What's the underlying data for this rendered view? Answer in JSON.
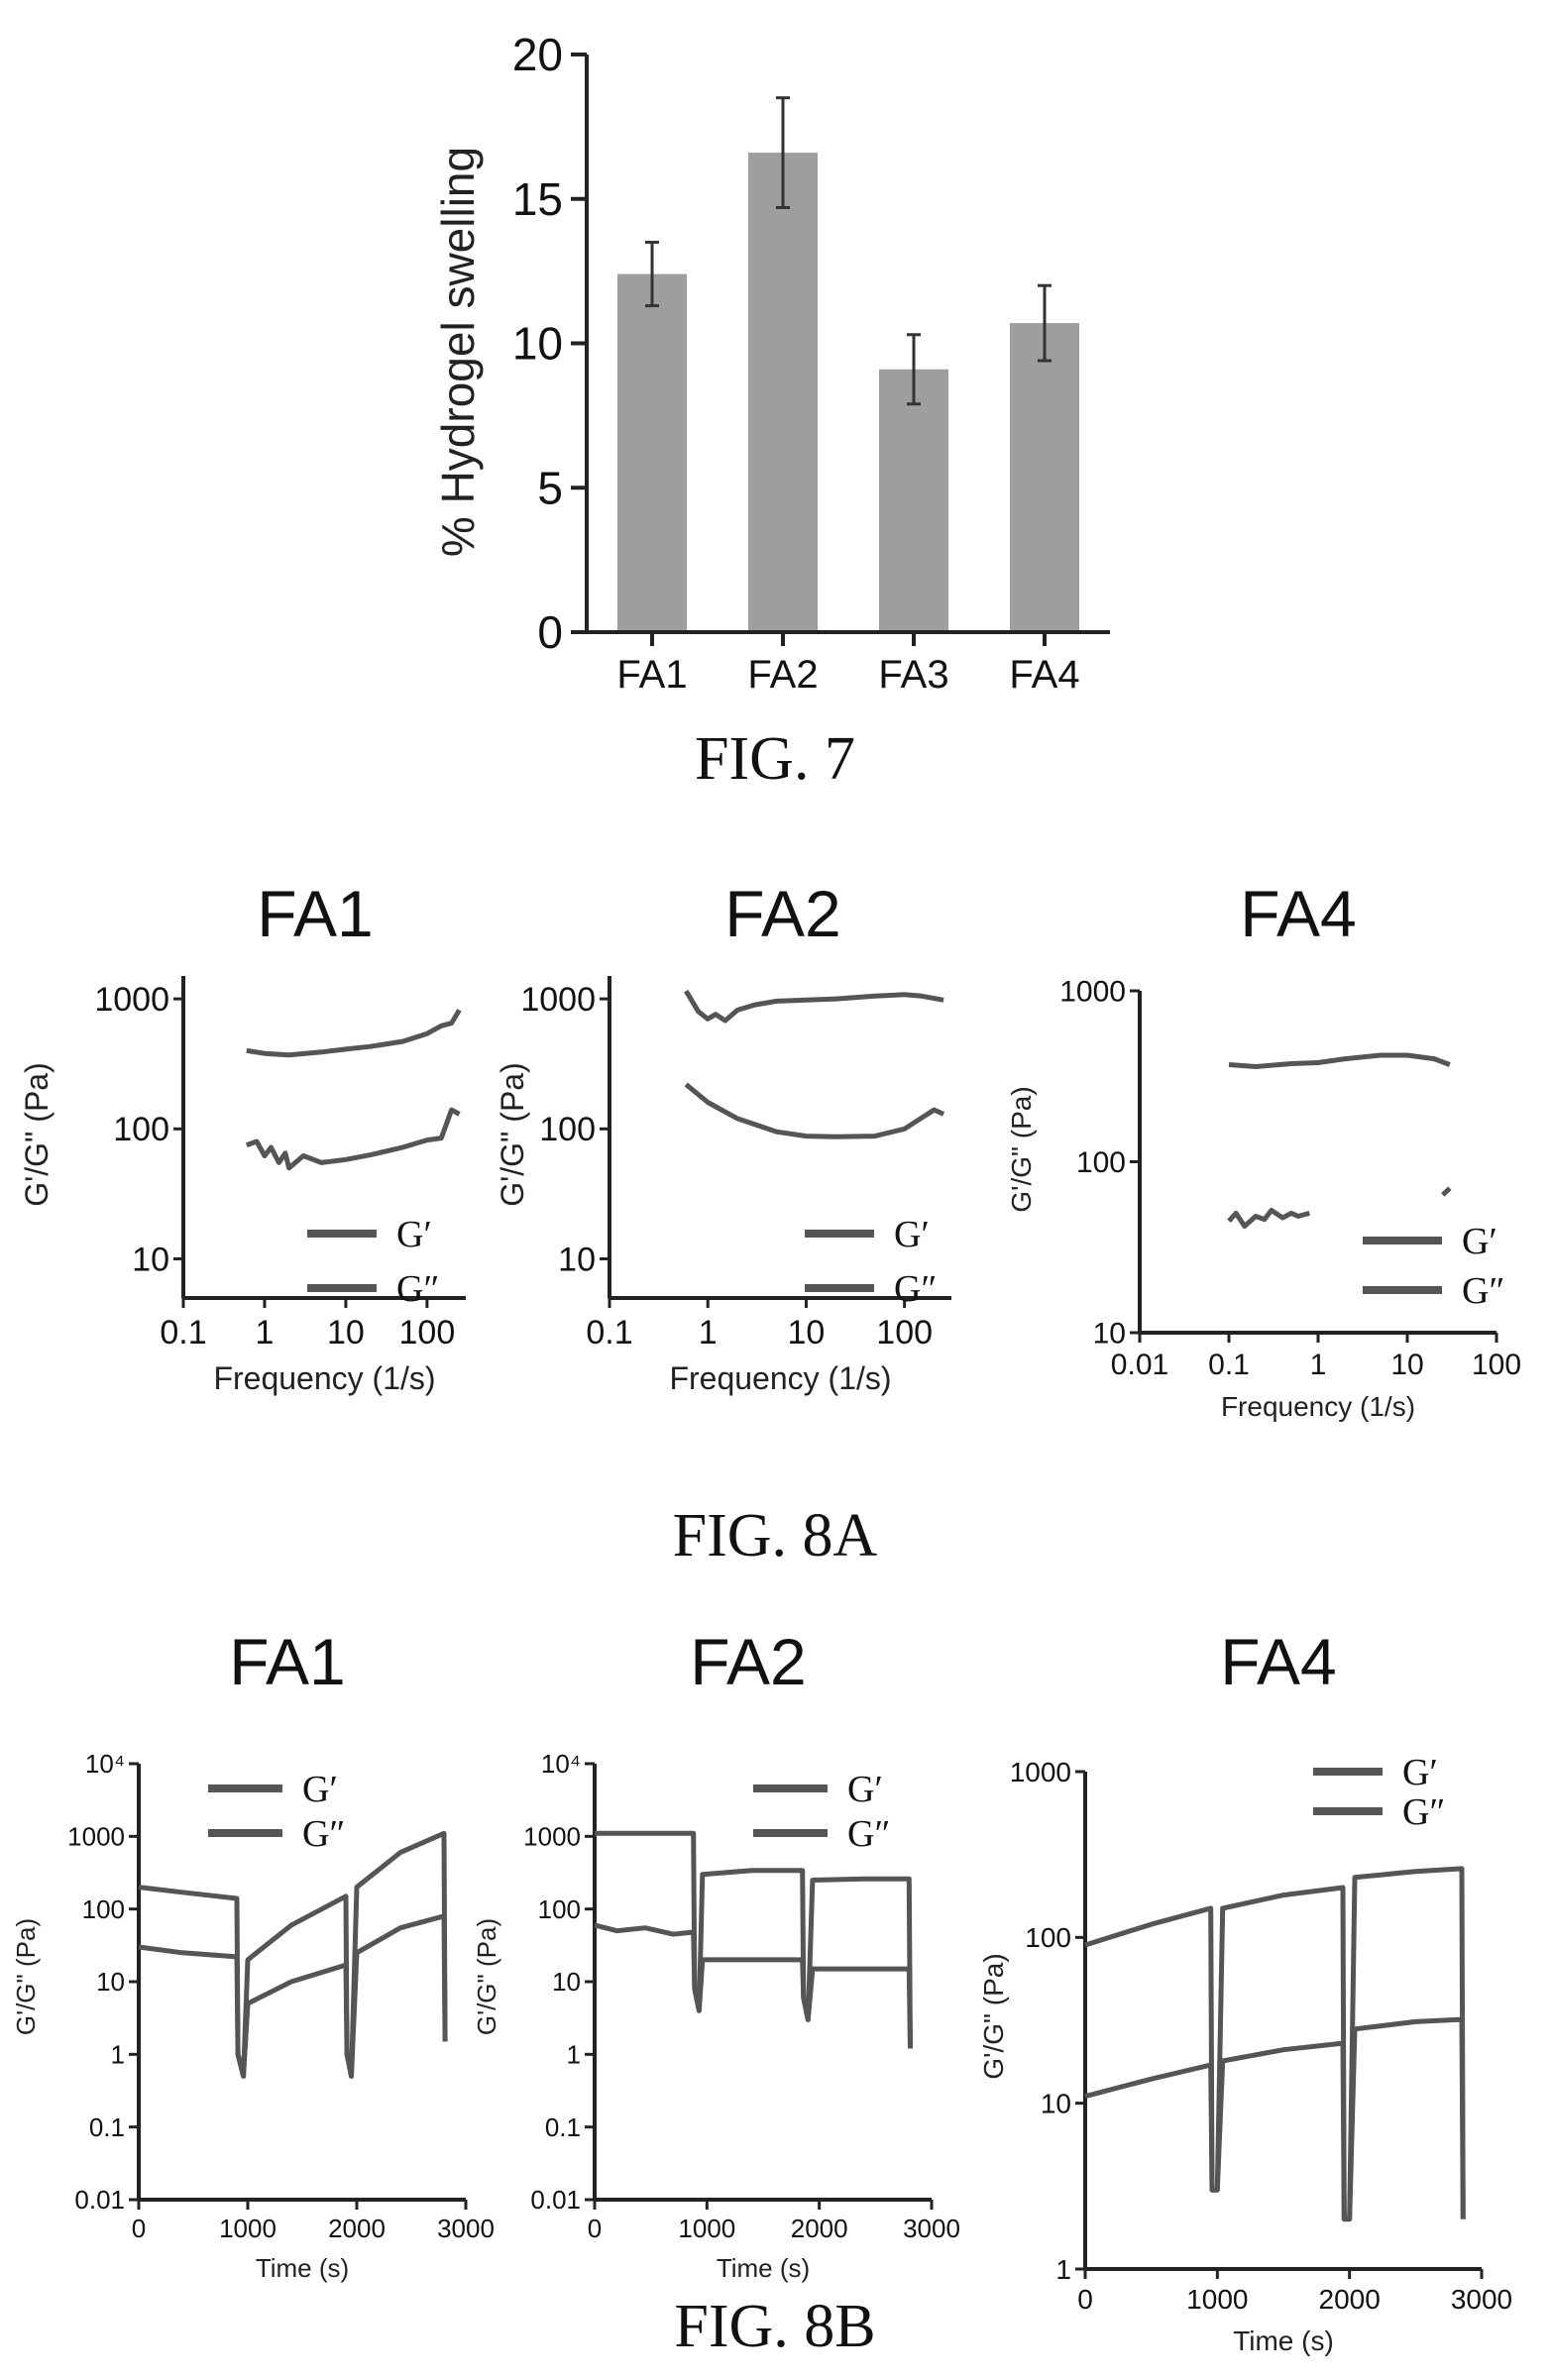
{
  "chart_data": [
    {
      "id": "fig7",
      "type": "bar",
      "caption": "FIG. 7",
      "ylabel": "% Hydrogel swelling",
      "categories": [
        "FA1",
        "FA2",
        "FA3",
        "FA4"
      ],
      "values": [
        12.4,
        16.6,
        9.1,
        10.7
      ],
      "errors": [
        1.1,
        1.9,
        1.2,
        1.3
      ],
      "ylim": [
        0,
        20
      ],
      "yticks": [
        0,
        5,
        10,
        15,
        20
      ],
      "bar_color": "#9e9e9e"
    },
    {
      "id": "fig8a_fa1",
      "type": "line",
      "title": "FA1",
      "xlabel": "Frequency (1/s)",
      "ylabel": "G'/G\" (Pa)",
      "xscale": "log",
      "yscale": "log",
      "xlim": [
        0.1,
        300
      ],
      "ylim": [
        5,
        1500
      ],
      "xticks": [
        0.1,
        1,
        10,
        100
      ],
      "xtick_labels": [
        "0.1",
        "1",
        "10",
        "100"
      ],
      "yticks": [
        10,
        100,
        1000
      ],
      "ytick_labels": [
        "10",
        "100",
        "1000"
      ],
      "legend": [
        "G′",
        "G″"
      ],
      "series": [
        {
          "name": "G′",
          "x": [
            0.6,
            1,
            2,
            5,
            10,
            20,
            50,
            100,
            150,
            200,
            250
          ],
          "y": [
            400,
            380,
            370,
            390,
            410,
            430,
            470,
            540,
            620,
            650,
            820
          ]
        },
        {
          "name": "G″",
          "x": [
            0.6,
            0.8,
            1,
            1.2,
            1.5,
            1.8,
            2,
            3,
            5,
            10,
            20,
            50,
            100,
            150,
            200,
            250
          ],
          "y": [
            75,
            80,
            62,
            72,
            55,
            65,
            50,
            62,
            55,
            58,
            63,
            72,
            82,
            85,
            140,
            130
          ]
        }
      ]
    },
    {
      "id": "fig8a_fa2",
      "type": "line",
      "title": "FA2",
      "xlabel": "Frequency (1/s)",
      "ylabel": "G'/G\" (Pa)",
      "xscale": "log",
      "yscale": "log",
      "xlim": [
        0.1,
        300
      ],
      "ylim": [
        5,
        1500
      ],
      "xticks": [
        0.1,
        1,
        10,
        100
      ],
      "xtick_labels": [
        "0.1",
        "1",
        "10",
        "100"
      ],
      "yticks": [
        10,
        100,
        1000
      ],
      "ytick_labels": [
        "10",
        "100",
        "1000"
      ],
      "legend": [
        "G′",
        "G″"
      ],
      "series": [
        {
          "name": "G′",
          "x": [
            0.6,
            0.8,
            1,
            1.2,
            1.5,
            2,
            3,
            5,
            10,
            20,
            50,
            100,
            150,
            250
          ],
          "y": [
            1150,
            800,
            700,
            760,
            680,
            820,
            900,
            960,
            980,
            1000,
            1050,
            1080,
            1050,
            980
          ]
        },
        {
          "name": "G″",
          "x": [
            0.6,
            1,
            2,
            5,
            10,
            20,
            50,
            100,
            200,
            250
          ],
          "y": [
            220,
            160,
            120,
            95,
            88,
            87,
            88,
            100,
            140,
            130
          ]
        }
      ]
    },
    {
      "id": "fig8a_fa4",
      "type": "line",
      "title": "FA4",
      "xlabel": "Frequency (1/s)",
      "ylabel": "G'/G\" (Pa)",
      "xscale": "log",
      "yscale": "log",
      "xlim": [
        0.01,
        100
      ],
      "ylim": [
        10,
        1000
      ],
      "xticks": [
        0.01,
        0.1,
        1,
        10,
        100
      ],
      "xtick_labels": [
        "0.01",
        "0.1",
        "1",
        "10",
        "100"
      ],
      "yticks": [
        10,
        100,
        1000
      ],
      "ytick_labels": [
        "10",
        "100",
        "1000"
      ],
      "legend": [
        "G′",
        "G″"
      ],
      "series": [
        {
          "name": "G′",
          "x": [
            0.1,
            0.2,
            0.5,
            1,
            2,
            5,
            10,
            20,
            30
          ],
          "y": [
            370,
            360,
            375,
            380,
            400,
            420,
            420,
            400,
            370
          ]
        },
        {
          "name": "G″",
          "x": [
            0.1,
            0.12,
            0.15,
            0.2,
            0.25,
            0.3,
            0.4,
            0.5,
            0.6,
            0.8
          ],
          "y": [
            45,
            50,
            42,
            48,
            46,
            52,
            47,
            50,
            48,
            50
          ]
        },
        {
          "name": "G″",
          "x": [
            25,
            30
          ],
          "y": [
            64,
            70
          ]
        }
      ]
    },
    {
      "id": "fig8b_fa1",
      "type": "line",
      "title": "FA1",
      "xlabel": "Time (s)",
      "ylabel": "G'/G\" (Pa)",
      "xscale": "linear",
      "yscale": "log",
      "xlim": [
        0,
        3000
      ],
      "ylim": [
        0.01,
        10000
      ],
      "xticks": [
        0,
        1000,
        2000,
        3000
      ],
      "xtick_labels": [
        "0",
        "1000",
        "2000",
        "3000"
      ],
      "yticks": [
        0.01,
        0.1,
        1,
        10,
        100,
        1000,
        10000
      ],
      "ytick_labels": [
        "0.01",
        "0.1",
        "1",
        "10",
        "100",
        "1000",
        "10⁴"
      ],
      "legend": [
        "G′",
        "G″"
      ],
      "series": [
        {
          "name": "G′",
          "x": [
            0,
            400,
            900,
            910,
            960,
            1000,
            1400,
            1900,
            1910,
            1950,
            2000,
            2400,
            2800,
            2810
          ],
          "y": [
            200,
            170,
            140,
            1,
            0.5,
            20,
            60,
            150,
            1,
            0.5,
            200,
            600,
            1100,
            1.5
          ]
        },
        {
          "name": "G″",
          "x": [
            0,
            400,
            900,
            910,
            960,
            1000,
            1400,
            1900,
            1910,
            1950,
            2000,
            2400,
            2800,
            2810
          ],
          "y": [
            30,
            25,
            22,
            1,
            0.5,
            5,
            10,
            17,
            1,
            0.5,
            25,
            55,
            80,
            1.5
          ]
        }
      ]
    },
    {
      "id": "fig8b_fa2",
      "type": "line",
      "title": "FA2",
      "xlabel": "Time (s)",
      "ylabel": "G'/G\" (Pa)",
      "xscale": "linear",
      "yscale": "log",
      "xlim": [
        0,
        3000
      ],
      "ylim": [
        0.01,
        10000
      ],
      "xticks": [
        0,
        1000,
        2000,
        3000
      ],
      "xtick_labels": [
        "0",
        "1000",
        "2000",
        "3000"
      ],
      "yticks": [
        0.01,
        0.1,
        1,
        10,
        100,
        1000,
        10000
      ],
      "ytick_labels": [
        "0.01",
        "0.1",
        "1",
        "10",
        "100",
        "1000",
        "10⁴"
      ],
      "legend": [
        "G′",
        "G″"
      ],
      "series": [
        {
          "name": "G′",
          "x": [
            0,
            450,
            880,
            890,
            930,
            960,
            1400,
            1850,
            1860,
            1900,
            1940,
            2400,
            2800,
            2810
          ],
          "y": [
            1100,
            1100,
            1100,
            8,
            4,
            300,
            340,
            340,
            6,
            3,
            250,
            260,
            260,
            1.2
          ]
        },
        {
          "name": "G″",
          "x": [
            0,
            200,
            450,
            700,
            880,
            890,
            930,
            960,
            1400,
            1850,
            1860,
            1900,
            1940,
            2400,
            2800,
            2810
          ],
          "y": [
            60,
            50,
            55,
            45,
            48,
            8,
            4,
            20,
            20,
            20,
            6,
            3,
            15,
            15,
            15,
            1.2
          ]
        }
      ]
    },
    {
      "id": "fig8b_fa4",
      "type": "line",
      "title": "FA4",
      "xlabel": "Time (s)",
      "ylabel": "G'/G\" (Pa)",
      "xscale": "linear",
      "yscale": "log",
      "xlim": [
        0,
        3000
      ],
      "ylim": [
        1,
        1000
      ],
      "xticks": [
        0,
        1000,
        2000,
        3000
      ],
      "xtick_labels": [
        "0",
        "1000",
        "2000",
        "3000"
      ],
      "yticks": [
        1,
        10,
        100,
        1000
      ],
      "ytick_labels": [
        "1",
        "10",
        "100",
        "1000"
      ],
      "legend": [
        "G′",
        "G″"
      ],
      "series": [
        {
          "name": "G′",
          "x": [
            0,
            500,
            950,
            960,
            1000,
            1040,
            1500,
            1950,
            1960,
            2000,
            2040,
            2500,
            2850,
            2860
          ],
          "y": [
            90,
            120,
            150,
            3,
            3,
            150,
            180,
            200,
            2,
            2,
            230,
            250,
            260,
            2
          ]
        },
        {
          "name": "G″",
          "x": [
            0,
            500,
            950,
            960,
            1000,
            1040,
            1500,
            1950,
            1960,
            2000,
            2040,
            2500,
            2850,
            2860
          ],
          "y": [
            11,
            14,
            17,
            3,
            3,
            18,
            21,
            23,
            2,
            2,
            28,
            31,
            32,
            2
          ]
        }
      ]
    }
  ],
  "captions": {
    "fig7": "FIG. 7",
    "fig8a": "FIG. 8A",
    "fig8b": "FIG. 8B"
  }
}
